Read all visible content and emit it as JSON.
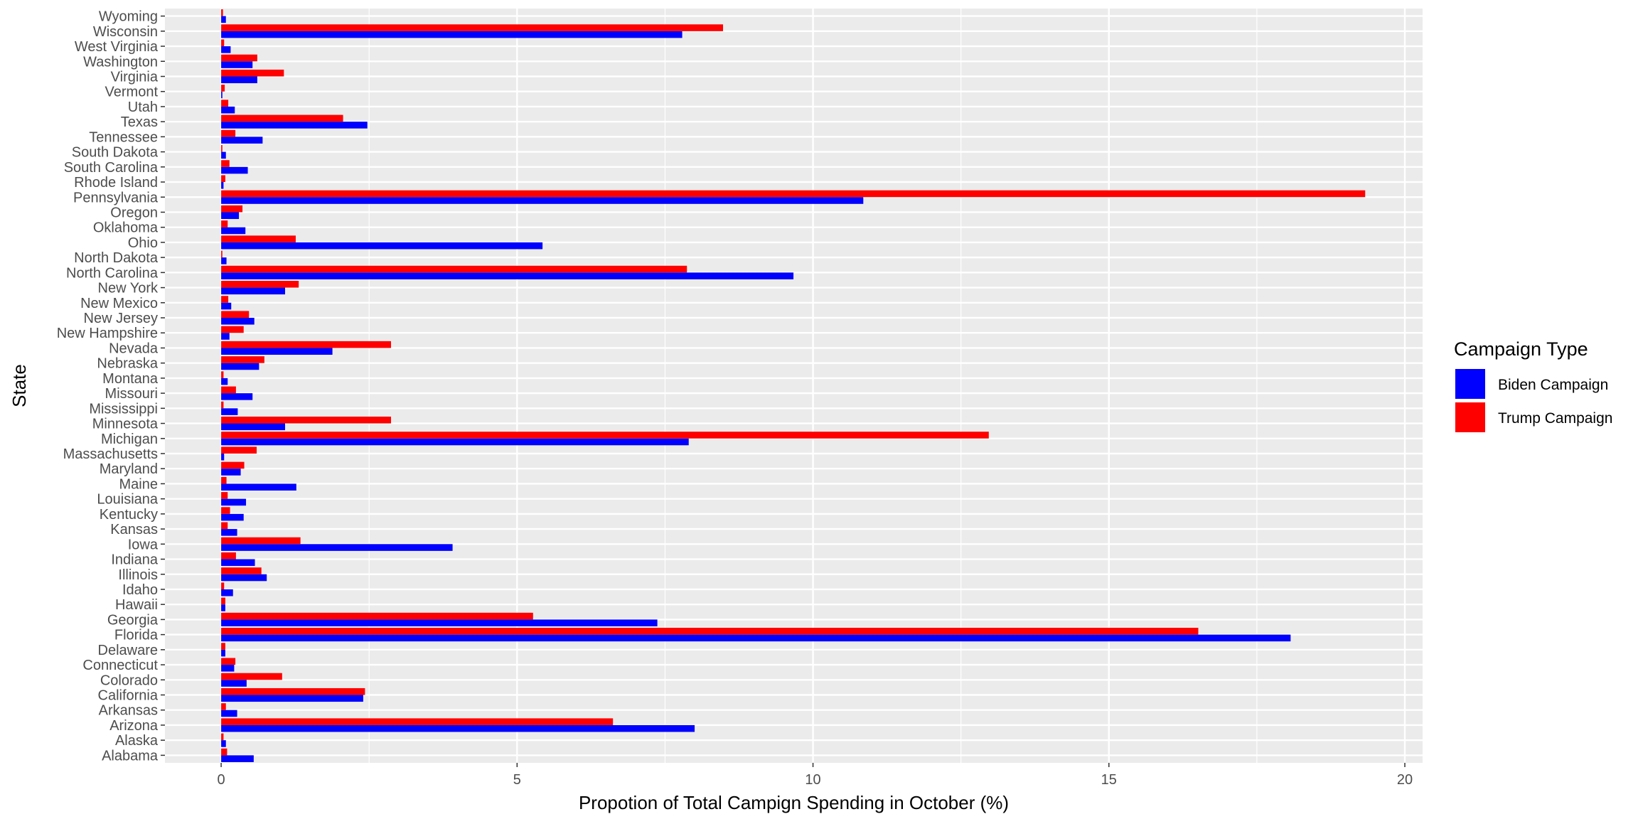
{
  "chart_data": {
    "type": "bar",
    "orientation": "horizontal",
    "categories": [
      "Alabama",
      "Alaska",
      "Arizona",
      "Arkansas",
      "California",
      "Colorado",
      "Connecticut",
      "Delaware",
      "Florida",
      "Georgia",
      "Hawaii",
      "Idaho",
      "Illinois",
      "Indiana",
      "Iowa",
      "Kansas",
      "Kentucky",
      "Louisiana",
      "Maine",
      "Maryland",
      "Massachusetts",
      "Michigan",
      "Minnesota",
      "Mississippi",
      "Missouri",
      "Montana",
      "Nebraska",
      "Nevada",
      "New Hampshire",
      "New Jersey",
      "New Mexico",
      "New York",
      "North Carolina",
      "North Dakota",
      "Ohio",
      "Oklahoma",
      "Oregon",
      "Pennsylvania",
      "Rhode Island",
      "South Carolina",
      "South Dakota",
      "Tennessee",
      "Texas",
      "Utah",
      "Vermont",
      "Virginia",
      "Washington",
      "West Virginia",
      "Wisconsin",
      "Wyoming"
    ],
    "series": [
      {
        "name": "Biden Campaign",
        "color": "#0000FF",
        "values": [
          0.55,
          0.08,
          8.0,
          0.27,
          2.4,
          0.43,
          0.22,
          0.07,
          18.07,
          7.37,
          0.07,
          0.2,
          0.77,
          0.57,
          3.91,
          0.27,
          0.38,
          0.42,
          1.27,
          0.33,
          0.05,
          7.9,
          1.08,
          0.28,
          0.53,
          0.11,
          0.64,
          1.88,
          0.14,
          0.56,
          0.17,
          1.08,
          9.67,
          0.09,
          5.43,
          0.41,
          0.3,
          10.85,
          0.04,
          0.45,
          0.08,
          0.7,
          2.47,
          0.23,
          0.02,
          0.61,
          0.53,
          0.16,
          7.79,
          0.08
        ]
      },
      {
        "name": "Trump Campaign",
        "color": "#FF0000",
        "values": [
          0.1,
          0.04,
          6.62,
          0.08,
          2.43,
          1.03,
          0.24,
          0.07,
          16.51,
          5.27,
          0.07,
          0.05,
          0.68,
          0.25,
          1.34,
          0.11,
          0.15,
          0.11,
          0.09,
          0.39,
          0.6,
          12.97,
          2.87,
          0.04,
          0.25,
          0.04,
          0.73,
          2.87,
          0.38,
          0.47,
          0.12,
          1.31,
          7.87,
          0.02,
          1.26,
          0.11,
          0.36,
          19.33,
          0.07,
          0.14,
          0.02,
          0.24,
          2.06,
          0.12,
          0.06,
          1.06,
          0.61,
          0.05,
          8.48,
          0.03
        ]
      }
    ],
    "xlabel": "Propotion of Total Campign Spending in October (%)",
    "ylabel": "State",
    "xlim": [
      -0.95,
      20.3
    ],
    "xticks": [
      0,
      5,
      10,
      15,
      20
    ],
    "xtick_labels": [
      "0",
      "5",
      "10",
      "15",
      "20"
    ],
    "grid": true,
    "legend": {
      "title": "Campaign Type",
      "position": "right"
    },
    "panel_background": "#EBEBEB",
    "grid_color": "#FFFFFF"
  }
}
